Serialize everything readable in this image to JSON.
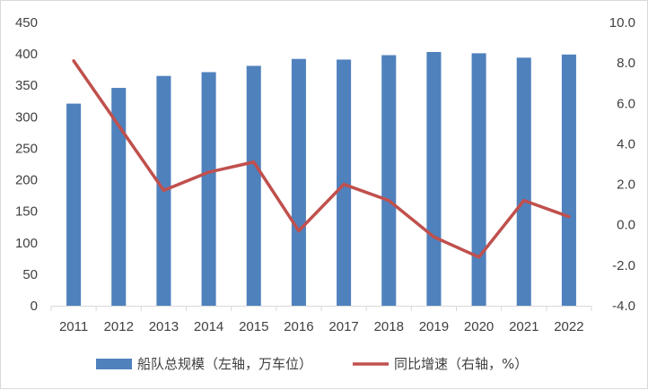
{
  "chart_data": {
    "type": "bar+line",
    "title": "",
    "categories": [
      "2011",
      "2012",
      "2013",
      "2014",
      "2015",
      "2016",
      "2017",
      "2018",
      "2019",
      "2020",
      "2021",
      "2022"
    ],
    "series": [
      {
        "name": "船队总规模（左轴，万车位）",
        "type": "bar",
        "axis": "left",
        "color": "#4f81bd",
        "values": [
          321,
          346,
          365,
          371,
          381,
          392,
          391,
          398,
          403,
          401,
          394,
          399
        ]
      },
      {
        "name": "同比增速（右轴，%）",
        "type": "line",
        "axis": "right",
        "color": "#c0504d",
        "values": [
          8.1,
          4.9,
          1.7,
          2.6,
          3.1,
          -0.3,
          2.0,
          1.2,
          -0.6,
          -1.6,
          1.2,
          0.4
        ]
      }
    ],
    "y_left": {
      "min": 0,
      "max": 450,
      "step": 50,
      "ticks": [
        "0",
        "50",
        "100",
        "150",
        "200",
        "250",
        "300",
        "350",
        "400",
        "450"
      ]
    },
    "y_right": {
      "min": -4,
      "max": 10,
      "step": 2,
      "ticks": [
        "-4.0",
        "-2.0",
        "0.0",
        "2.0",
        "4.0",
        "6.0",
        "8.0",
        "10.0"
      ]
    },
    "grid": false,
    "legend_position": "bottom"
  }
}
